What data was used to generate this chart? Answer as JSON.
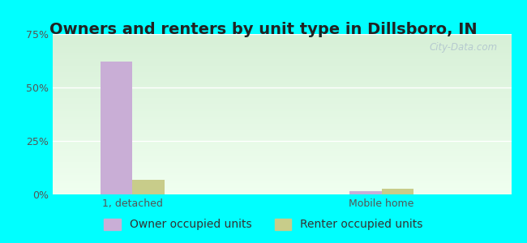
{
  "title": "Owners and renters by unit type in Dillsboro, IN",
  "categories": [
    "1, detached",
    "Mobile home"
  ],
  "owner_values": [
    62.0,
    1.5
  ],
  "renter_values": [
    7.0,
    2.5
  ],
  "owner_color": "#c9aed6",
  "renter_color": "#c8cc8a",
  "ylim": [
    0,
    75
  ],
  "yticks": [
    0,
    25,
    50,
    75
  ],
  "yticklabels": [
    "0%",
    "25%",
    "50%",
    "75%"
  ],
  "bar_width": 0.32,
  "group_positions": [
    1.0,
    3.5
  ],
  "legend_owner": "Owner occupied units",
  "legend_renter": "Renter occupied units",
  "watermark": "City-Data.com",
  "title_fontsize": 14,
  "tick_fontsize": 9,
  "legend_fontsize": 10,
  "outer_bg": "#00ffff",
  "plot_bg_left": "#d4eed4",
  "plot_bg_right": "#f0fff0"
}
